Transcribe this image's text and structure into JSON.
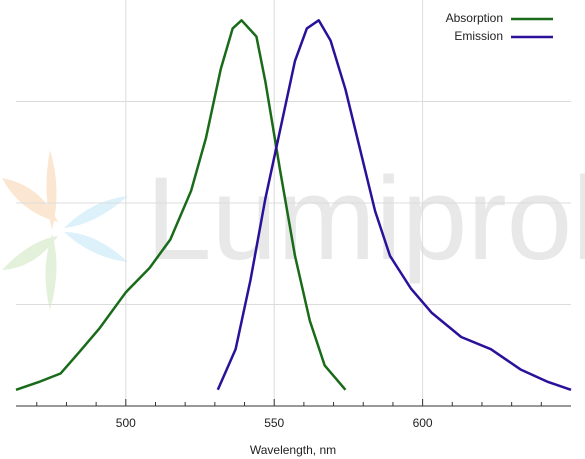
{
  "chart_data": {
    "type": "line",
    "watermark": "Lumiprobe",
    "xlabel": "Wavelength, nm",
    "xlim": [
      463,
      650
    ],
    "xticks": [
      500,
      550,
      600
    ],
    "xminor_ticks": [
      470,
      480,
      490,
      510,
      520,
      530,
      540,
      560,
      570,
      580,
      590,
      610,
      620,
      630,
      640
    ],
    "ylim": [
      0,
      1
    ],
    "yticks": [
      0.25,
      0.5,
      0.75
    ],
    "grid": true,
    "legend": "top-right",
    "series": [
      {
        "name": "Absorption",
        "color": "#196b19",
        "x": [
          463,
          471,
          478,
          484,
          491,
          500,
          508,
          515,
          522,
          527,
          532,
          536,
          539,
          544,
          547,
          552,
          557,
          562,
          567,
          574
        ],
        "values": [
          0.04,
          0.06,
          0.08,
          0.13,
          0.19,
          0.28,
          0.34,
          0.41,
          0.53,
          0.66,
          0.83,
          0.93,
          0.95,
          0.91,
          0.8,
          0.58,
          0.37,
          0.21,
          0.1,
          0.04
        ]
      },
      {
        "name": "Emission",
        "color": "#2b1199",
        "x": [
          531,
          537,
          542,
          547,
          552,
          557,
          561,
          565,
          569,
          574,
          579,
          584,
          589,
          596,
          603,
          613,
          623,
          633,
          642,
          650
        ],
        "values": [
          0.04,
          0.14,
          0.31,
          0.51,
          0.68,
          0.85,
          0.93,
          0.95,
          0.9,
          0.78,
          0.63,
          0.48,
          0.37,
          0.29,
          0.23,
          0.17,
          0.14,
          0.09,
          0.06,
          0.04
        ]
      }
    ]
  }
}
